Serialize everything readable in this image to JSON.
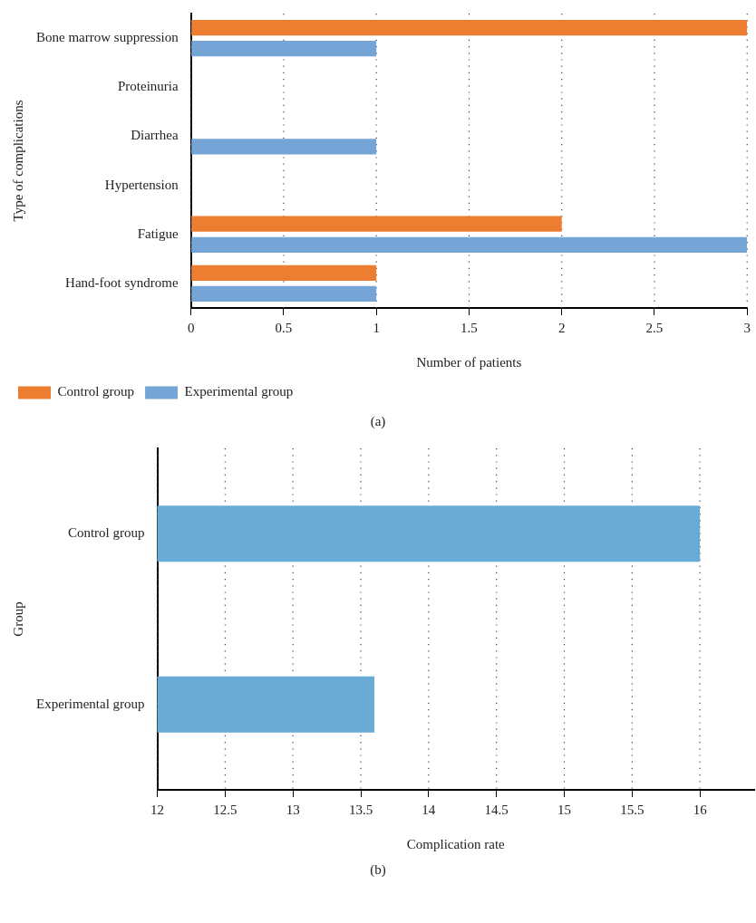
{
  "chart_data": [
    {
      "type": "bar",
      "orientation": "horizontal",
      "xlabel": "Number of patients",
      "ylabel": "Type of complications",
      "categories": [
        "Bone marrow suppression",
        "Proteinuria",
        "Diarrhea",
        "Hypertension",
        "Fatigue",
        "Hand-foot syndrome"
      ],
      "series": [
        {
          "name": "Control group",
          "color": "#ed7d31",
          "values": [
            3,
            0,
            0,
            0,
            2,
            1
          ]
        },
        {
          "name": "Experimental group",
          "color": "#75a4d6",
          "values": [
            1,
            0,
            1,
            0,
            3,
            1
          ]
        }
      ],
      "xlim": [
        0,
        3
      ],
      "xticks": [
        0,
        0.5,
        1,
        1.5,
        2,
        2.5,
        3
      ],
      "grid": "x",
      "legend": "bottom",
      "annotations": [
        "(a)"
      ]
    },
    {
      "type": "bar",
      "orientation": "horizontal",
      "xlabel": "Complication rate",
      "ylabel": "Group",
      "categories": [
        "Control group",
        "Experimental group"
      ],
      "series": [
        {
          "color": "#6aabd6",
          "values": [
            16,
            13.6
          ]
        }
      ],
      "xlim": [
        12,
        16.4
      ],
      "xticks": [
        12,
        12.5,
        13,
        13.5,
        14,
        14.5,
        15,
        15.5,
        16
      ],
      "grid": "x",
      "annotations": [
        "(b)"
      ]
    }
  ]
}
